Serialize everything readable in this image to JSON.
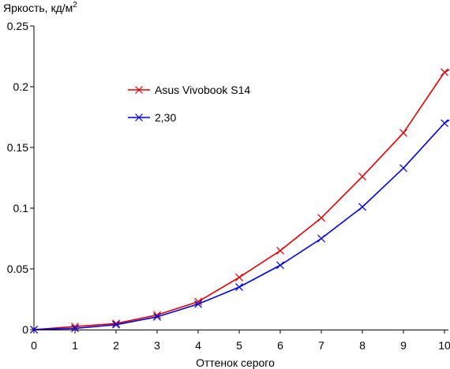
{
  "chart_data": {
    "type": "line",
    "title": "",
    "ylabel_main": "Яркость, кд/м",
    "ylabel_sup": "2",
    "xlabel": "Оттенок серого",
    "xlim": [
      0,
      10
    ],
    "ylim": [
      0,
      0.25
    ],
    "x_ticks": [
      0,
      1,
      2,
      3,
      4,
      5,
      6,
      7,
      8,
      9,
      10
    ],
    "x_tick_labels": [
      "0",
      "1",
      "2",
      "3",
      "4",
      "5",
      "6",
      "7",
      "8",
      "9",
      "10"
    ],
    "y_ticks": [
      0,
      0.05,
      0.1,
      0.15,
      0.2,
      0.25
    ],
    "y_tick_labels": [
      "0",
      "0.05",
      "0.1",
      "0.15",
      "0.2",
      "0.25"
    ],
    "grid": false,
    "legend_position": "upper-left-center",
    "x": [
      0,
      1,
      2,
      3,
      4,
      5,
      6,
      7,
      8,
      9,
      10
    ],
    "series": [
      {
        "name": "Asus Vivobook S14",
        "color": "#e00000",
        "marker": "x",
        "values": [
          0.0,
          0.0025,
          0.005,
          0.012,
          0.023,
          0.043,
          0.065,
          0.092,
          0.126,
          0.162,
          0.212
        ],
        "line_end": [
          10.2,
          0.2155
        ]
      },
      {
        "name": "2,30",
        "color": "#0000e0",
        "marker": "x",
        "values": [
          0.0,
          0.001,
          0.004,
          0.0105,
          0.021,
          0.035,
          0.053,
          0.075,
          0.101,
          0.133,
          0.17
        ],
        "line_end": [
          10.2,
          0.1745
        ]
      }
    ]
  }
}
